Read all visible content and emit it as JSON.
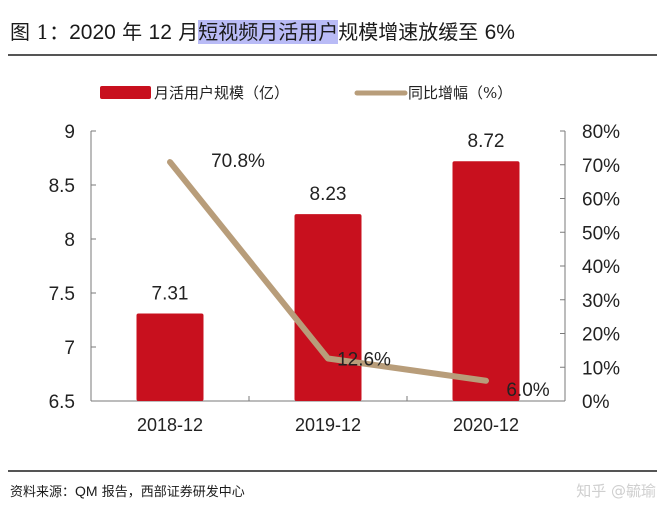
{
  "title": {
    "prefix": "图 1：",
    "year": "2020",
    "nian": " 年 ",
    "month": "12",
    "yue": " 月",
    "highlighted": "短视频月活用户",
    "rest": "规模增速放缓至 ",
    "pct": "6%"
  },
  "legend": {
    "bar_label": "月活用户规模（亿）",
    "line_label": "同比增幅（%）"
  },
  "colors": {
    "bar": "#c8101e",
    "line": "#b89d7a",
    "highlight": "#b9bbf6"
  },
  "source": {
    "prefix": "资料来源：",
    "latin": "QM",
    "rest": " 报告，西部证券研发中心"
  },
  "watermark": "知乎 @毓瑜",
  "chart_data": {
    "type": "bar",
    "title": "图 1：2020 年 12 月短视频月活用户规模增速放缓至 6%",
    "categories": [
      "2018-12",
      "2019-12",
      "2020-12"
    ],
    "series": [
      {
        "name": "月活用户规模（亿）",
        "type": "bar",
        "axis": "left",
        "values": [
          7.31,
          8.23,
          8.72
        ],
        "labels": [
          "7.31",
          "8.23",
          "8.72"
        ]
      },
      {
        "name": "同比增幅（%）",
        "type": "line",
        "axis": "right",
        "values": [
          70.8,
          12.6,
          6.0
        ],
        "labels": [
          "70.8%",
          "12.6%",
          "6.0%"
        ]
      }
    ],
    "y_left": {
      "ylim": [
        6.5,
        9
      ],
      "ticks": [
        6.5,
        7,
        7.5,
        8,
        8.5,
        9
      ],
      "tick_labels": [
        "6.5",
        "7",
        "7.5",
        "8",
        "8.5",
        "9"
      ]
    },
    "y_right": {
      "ylim": [
        0,
        80
      ],
      "ticks": [
        0,
        10,
        20,
        30,
        40,
        50,
        60,
        70,
        80
      ],
      "tick_labels": [
        "0%",
        "10%",
        "20%",
        "30%",
        "40%",
        "50%",
        "60%",
        "70%",
        "80%"
      ]
    },
    "xlabel": "",
    "ylabel": "",
    "grid": false,
    "legend_position": "top"
  }
}
